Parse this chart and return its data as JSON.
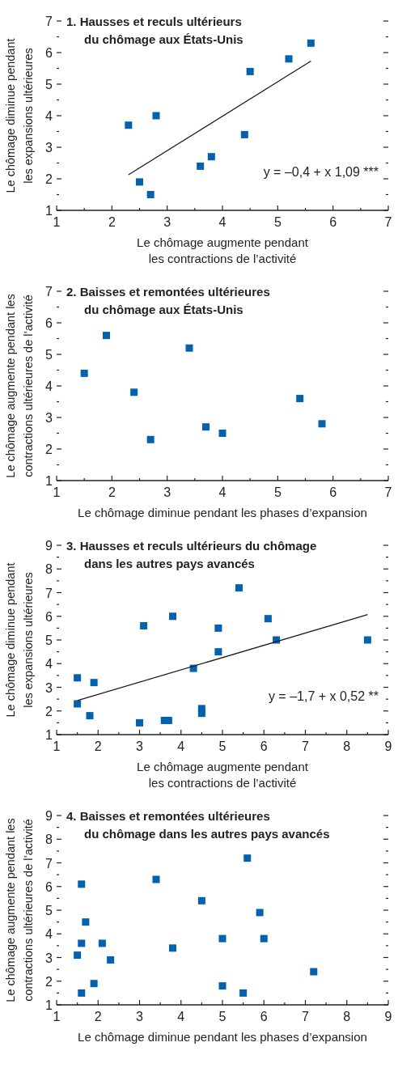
{
  "chart_data": [
    {
      "type": "scatter",
      "title": "1. Hausses et reculs ultérieurs\ndu chômage aux États-Unis",
      "xlabel": "Le chômage augmente pendant\nles contractions de l’activité",
      "ylabel": "Le chômage diminue pendant\nles expansions ultérieures",
      "marker": "square",
      "xlim": [
        1,
        7
      ],
      "ylim": [
        1,
        7
      ],
      "xticks": [
        1,
        {
          "value": 1.5,
          "label": null
        },
        2,
        {
          "value": 2.5,
          "label": null
        },
        3,
        {
          "value": 3.5,
          "label": null
        },
        4,
        {
          "value": 4.5,
          "label": null
        },
        5,
        {
          "value": 5.5,
          "label": null
        },
        6,
        {
          "value": 6.5,
          "label": null
        },
        7
      ],
      "yticks": [
        1,
        {
          "value": 1.5,
          "label": null
        },
        2,
        {
          "value": 2.5,
          "label": null
        },
        3,
        {
          "value": 3.5,
          "label": null
        },
        4,
        {
          "value": 4.5,
          "label": null
        },
        5,
        {
          "value": 5.5,
          "label": null
        },
        6,
        {
          "value": 6.5,
          "label": null
        },
        7
      ],
      "annotations": [
        "y = –0,4 + x 1,09 ***"
      ],
      "series": [
        {
          "color": "#0062b1",
          "x": [
            2.3,
            2.5,
            2.7,
            2.8,
            3.6,
            3.8,
            4.4,
            4.5,
            5.2,
            5.6
          ],
          "values": [
            3.7,
            1.9,
            1.5,
            4.0,
            2.4,
            2.7,
            3.4,
            5.4,
            5.8,
            6.3
          ]
        },
        {
          "type": "line",
          "marker": "none",
          "color": "#1a1a1a",
          "x": [
            2.3,
            5.6
          ],
          "values": [
            2.13,
            5.73
          ]
        }
      ]
    },
    {
      "type": "scatter",
      "title": "2. Baisses et remontées ultérieures\ndu chômage aux États-Unis",
      "xlabel": "Le chômage diminue pendant les phases d’expansion",
      "ylabel": "Le chômage augmente pendant les\ncontractions ultérieures de l’activité",
      "marker": "square",
      "xlim": [
        1,
        7
      ],
      "ylim": [
        1,
        7
      ],
      "xticks": [
        1,
        {
          "value": 1.5,
          "label": null
        },
        2,
        {
          "value": 2.5,
          "label": null
        },
        3,
        {
          "value": 3.5,
          "label": null
        },
        4,
        {
          "value": 4.5,
          "label": null
        },
        5,
        {
          "value": 5.5,
          "label": null
        },
        6,
        {
          "value": 6.5,
          "label": null
        },
        7
      ],
      "yticks": [
        1,
        {
          "value": 1.5,
          "label": null
        },
        2,
        {
          "value": 2.5,
          "label": null
        },
        3,
        {
          "value": 3.5,
          "label": null
        },
        4,
        {
          "value": 4.5,
          "label": null
        },
        5,
        {
          "value": 5.5,
          "label": null
        },
        6,
        {
          "value": 6.5,
          "label": null
        },
        7
      ],
      "series": [
        {
          "color": "#0062b1",
          "x": [
            1.5,
            1.9,
            2.4,
            2.7,
            3.4,
            3.7,
            4.0,
            5.4,
            5.8
          ],
          "values": [
            4.4,
            5.6,
            3.8,
            2.3,
            5.2,
            2.7,
            2.5,
            3.6,
            2.8
          ]
        }
      ]
    },
    {
      "type": "scatter",
      "title": "3. Hausses et reculs ultérieurs du chômage\ndans les autres pays avancés",
      "xlabel": "Le chômage augmente pendant\nles contractions de l’activité",
      "ylabel": "Le chômage diminue pendant\nles expansions ultérieures",
      "marker": "square",
      "xlim": [
        1,
        9
      ],
      "ylim": [
        1,
        9
      ],
      "xticks": [
        1,
        {
          "value": 1.5,
          "label": null
        },
        2,
        {
          "value": 2.5,
          "label": null
        },
        3,
        {
          "value": 3.5,
          "label": null
        },
        4,
        {
          "value": 4.5,
          "label": null
        },
        5,
        {
          "value": 5.5,
          "label": null
        },
        6,
        {
          "value": 6.5,
          "label": null
        },
        7,
        {
          "value": 7.5,
          "label": null
        },
        8,
        {
          "value": 8.5,
          "label": null
        },
        9
      ],
      "yticks": [
        1,
        {
          "value": 1.5,
          "label": null
        },
        2,
        {
          "value": 2.5,
          "label": null
        },
        3,
        {
          "value": 3.5,
          "label": null
        },
        4,
        {
          "value": 4.5,
          "label": null
        },
        5,
        {
          "value": 5.5,
          "label": null
        },
        6,
        {
          "value": 6.5,
          "label": null
        },
        7,
        {
          "value": 7.5,
          "label": null
        },
        8,
        {
          "value": 8.5,
          "label": null
        },
        9
      ],
      "annotations": [
        "y = –1,7 + x 0,52 **"
      ],
      "series": [
        {
          "color": "#0062b1",
          "x": [
            1.5,
            1.5,
            1.8,
            1.9,
            3.0,
            3.1,
            3.6,
            3.7,
            3.8,
            4.3,
            4.5,
            4.5,
            4.9,
            4.9,
            5.4,
            6.1,
            6.3,
            8.5
          ],
          "values": [
            3.4,
            2.3,
            1.8,
            3.2,
            1.5,
            5.6,
            1.6,
            1.6,
            6.0,
            3.8,
            2.1,
            1.9,
            5.5,
            4.5,
            7.2,
            5.9,
            5.0,
            5.0
          ]
        },
        {
          "type": "line",
          "marker": "none",
          "color": "#1a1a1a",
          "x": [
            1.5,
            8.5
          ],
          "values": [
            2.44,
            6.07
          ]
        }
      ]
    },
    {
      "type": "scatter",
      "title": "4. Baisses et remontées ultérieures\ndu chômage dans les autres pays avancés",
      "xlabel": "Le chômage diminue pendant les phases d’expansion",
      "ylabel": "Le chômage augmente pendant les\ncontractions ultérieures de l’activité",
      "marker": "square",
      "xlim": [
        1,
        9
      ],
      "ylim": [
        1,
        9
      ],
      "xticks": [
        1,
        {
          "value": 1.5,
          "label": null
        },
        2,
        {
          "value": 2.5,
          "label": null
        },
        3,
        {
          "value": 3.5,
          "label": null
        },
        4,
        {
          "value": 4.5,
          "label": null
        },
        5,
        {
          "value": 5.5,
          "label": null
        },
        6,
        {
          "value": 6.5,
          "label": null
        },
        7,
        {
          "value": 7.5,
          "label": null
        },
        8,
        {
          "value": 8.5,
          "label": null
        },
        9
      ],
      "yticks": [
        1,
        {
          "value": 1.5,
          "label": null
        },
        2,
        {
          "value": 2.5,
          "label": null
        },
        3,
        {
          "value": 3.5,
          "label": null
        },
        4,
        {
          "value": 4.5,
          "label": null
        },
        5,
        {
          "value": 5.5,
          "label": null
        },
        6,
        {
          "value": 6.5,
          "label": null
        },
        7,
        {
          "value": 7.5,
          "label": null
        },
        8,
        {
          "value": 8.5,
          "label": null
        },
        9
      ],
      "series": [
        {
          "color": "#0062b1",
          "x": [
            1.5,
            1.6,
            1.6,
            1.6,
            1.7,
            1.9,
            2.1,
            2.3,
            3.4,
            3.8,
            4.5,
            5.0,
            5.0,
            5.5,
            5.6,
            5.9,
            6.0,
            7.2
          ],
          "values": [
            3.1,
            6.1,
            3.6,
            1.5,
            4.5,
            1.9,
            3.6,
            2.9,
            6.3,
            3.4,
            5.4,
            3.8,
            1.8,
            1.5,
            7.2,
            4.9,
            3.8,
            2.4
          ]
        }
      ]
    }
  ]
}
